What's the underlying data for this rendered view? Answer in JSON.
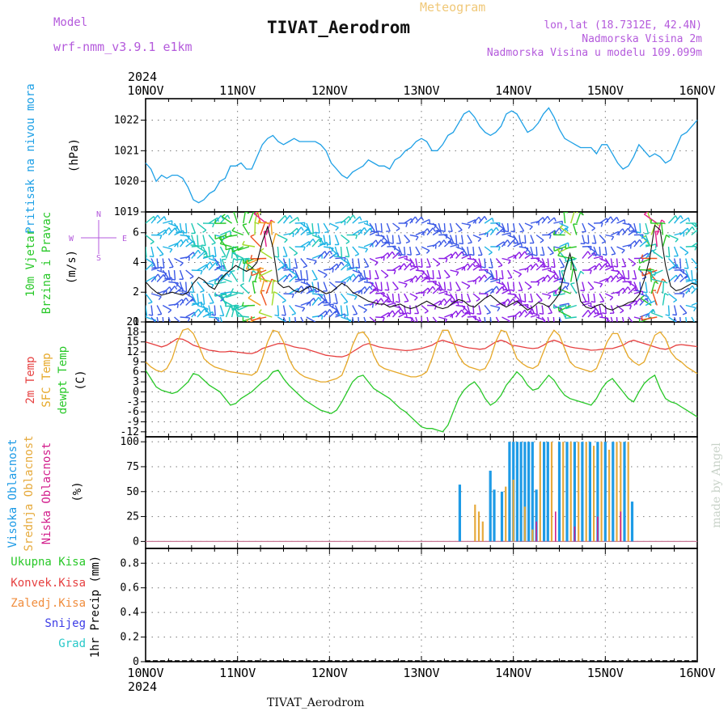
{
  "header": {
    "model_label": "Model",
    "model_name": "wrf-nmm_v3.9.1  e1km",
    "meteogram_label": "Meteogram",
    "station_title": "TIVAT_Aerodrom",
    "lonlat": "lon,lat (18.7312E, 42.4N)",
    "height_2m": "Nadmorska Visina 2m",
    "model_height": "Nadmorska Visina u modelu 109.099m",
    "footer_station": "TIVAT_Aerodrom",
    "watermark": "made by Angel"
  },
  "colors": {
    "pressure": "#1ea0e6",
    "t2m": "#e64040",
    "tsfc": "#e6a828",
    "dewpoint": "#28c828",
    "cloud_high": "#1e9be6",
    "cloud_mid": "#e6aa3c",
    "cloud_low": "#d21e8c",
    "title_purple": "#b45adc",
    "meteogram_orange": "#f0c878",
    "precip_total": "#28c828",
    "precip_conv": "#e64040",
    "precip_frozen": "#f08c3c",
    "precip_snow": "#3c3ce6",
    "precip_graupel": "#28c8c8"
  },
  "chart_data": [
    {
      "type": "line",
      "title": "",
      "ylabel": "(hPa)",
      "ylabel_side": "Pritisak na nivou mora",
      "x_ticks": [
        "10NOV",
        "11NOV",
        "12NOV",
        "13NOV",
        "14NOV",
        "15NOV",
        "16NOV"
      ],
      "x_year": "2024",
      "y_ticks": [
        1019,
        1020,
        1021,
        1022
      ],
      "ylim": [
        1019,
        1022.7
      ],
      "grid": true,
      "series": [
        {
          "key": "mslp",
          "values": [
            1020.6,
            1020.4,
            1020.0,
            1020.2,
            1020.1,
            1020.2,
            1020.2,
            1020.1,
            1019.8,
            1019.4,
            1019.3,
            1019.4,
            1019.6,
            1019.7,
            1020.0,
            1020.1,
            1020.5,
            1020.5,
            1020.6,
            1020.4,
            1020.4,
            1020.8,
            1021.2,
            1021.4,
            1021.5,
            1021.3,
            1021.2,
            1021.3,
            1021.4,
            1021.3,
            1021.3,
            1021.3,
            1021.3,
            1021.2,
            1021.0,
            1020.6,
            1020.4,
            1020.2,
            1020.1,
            1020.3,
            1020.4,
            1020.5,
            1020.7,
            1020.6,
            1020.5,
            1020.5,
            1020.4,
            1020.7,
            1020.8,
            1021.0,
            1021.1,
            1021.3,
            1021.4,
            1021.3,
            1021.0,
            1021.0,
            1021.2,
            1021.5,
            1021.6,
            1021.9,
            1022.2,
            1022.3,
            1022.1,
            1021.8,
            1021.6,
            1021.5,
            1021.6,
            1021.8,
            1022.2,
            1022.3,
            1022.2,
            1021.9,
            1021.6,
            1021.7,
            1021.9,
            1022.2,
            1022.4,
            1022.1,
            1021.7,
            1021.4,
            1021.3,
            1021.2,
            1021.1,
            1021.1,
            1021.1,
            1020.9,
            1021.2,
            1021.2,
            1020.9,
            1020.6,
            1020.4,
            1020.5,
            1020.8,
            1021.2,
            1021.0,
            1020.8,
            1020.9,
            1020.8,
            1020.6,
            1020.7,
            1021.1,
            1021.5,
            1021.6,
            1021.8,
            1022.0
          ]
        }
      ]
    },
    {
      "type": "line",
      "title": "",
      "ylabel": "(m/s)",
      "ylabel_side": [
        "10m Vjetar",
        "Brzina i Pravac"
      ],
      "wind_key": {
        "n": "N",
        "w": "W",
        "e": "E",
        "s": "S"
      },
      "y_ticks": [
        0,
        2,
        4,
        6
      ],
      "ylim": [
        0,
        7.4
      ],
      "grid": true,
      "series": [
        {
          "key": "wind_speed",
          "values": [
            2.7,
            2.3,
            2.0,
            1.8,
            1.9,
            2.0,
            1.9,
            1.8,
            2.0,
            2.6,
            3.0,
            2.8,
            2.4,
            2.2,
            2.8,
            3.2,
            3.5,
            3.8,
            3.6,
            3.4,
            3.6,
            4.0,
            5.4,
            6.4,
            5.0,
            2.6,
            2.3,
            2.4,
            2.1,
            2.0,
            2.2,
            2.4,
            2.3,
            2.1,
            1.9,
            2.0,
            2.3,
            2.6,
            2.4,
            2.0,
            1.8,
            1.6,
            1.4,
            1.3,
            1.2,
            1.2,
            1.0,
            1.1,
            1.2,
            1.0,
            0.9,
            1.0,
            1.2,
            1.4,
            1.2,
            1.0,
            0.9,
            1.0,
            1.3,
            1.5,
            1.4,
            1.1,
            1.0,
            1.3,
            1.6,
            1.8,
            1.5,
            1.2,
            1.0,
            1.2,
            1.4,
            1.1,
            0.8,
            1.0,
            1.3,
            1.2,
            1.0,
            1.4,
            1.9,
            3.4,
            4.6,
            3.2,
            1.4,
            1.0,
            0.9,
            1.1,
            1.2,
            0.9,
            0.8,
            1.0,
            1.1,
            1.3,
            1.4,
            1.8,
            2.8,
            4.2,
            6.5,
            6.2,
            3.8,
            2.4,
            2.1,
            2.2,
            2.4,
            2.6,
            2.5
          ]
        }
      ]
    },
    {
      "type": "line",
      "title": "",
      "ylabel": "(C)",
      "ylabel_side": [
        "2m Temp",
        "SFC Temp",
        "dewpt Temp"
      ],
      "y_ticks": [
        -12,
        -9,
        -6,
        -3,
        0,
        3,
        6,
        9,
        12,
        15,
        18,
        21
      ],
      "ylim": [
        -13.5,
        21
      ],
      "grid": true,
      "series": [
        {
          "key": "t2m",
          "values": [
            15.0,
            14.5,
            14.0,
            13.5,
            14.0,
            15.0,
            16.0,
            15.8,
            15.0,
            14.0,
            13.5,
            13.0,
            12.5,
            12.3,
            12.0,
            12.0,
            12.2,
            12.0,
            11.8,
            11.6,
            11.5,
            12.0,
            13.0,
            13.5,
            14.0,
            14.5,
            14.5,
            14.0,
            13.5,
            13.2,
            13.0,
            12.5,
            12.0,
            11.5,
            11.0,
            10.8,
            10.6,
            10.5,
            11.0,
            12.0,
            13.0,
            14.0,
            14.5,
            14.0,
            13.5,
            13.2,
            13.0,
            12.8,
            12.6,
            12.4,
            12.5,
            12.8,
            13.0,
            13.5,
            14.0,
            15.0,
            15.5,
            15.0,
            14.5,
            14.0,
            13.5,
            13.2,
            13.0,
            12.8,
            13.0,
            14.0,
            15.0,
            15.5,
            15.0,
            14.0,
            13.8,
            13.5,
            13.2,
            13.0,
            13.2,
            14.0,
            15.0,
            15.5,
            15.0,
            14.0,
            13.5,
            13.2,
            13.0,
            12.8,
            12.5,
            12.6,
            12.8,
            13.0,
            13.0,
            13.5,
            14.0,
            15.0,
            15.5,
            15.0,
            14.5,
            14.0,
            13.5,
            13.0,
            12.8,
            13.2,
            14.0,
            14.2,
            14.0,
            13.8,
            13.6
          ]
        },
        {
          "key": "tsfc",
          "values": [
            9.0,
            7.5,
            6.5,
            6.0,
            7.0,
            10.0,
            15.0,
            18.5,
            19.0,
            17.5,
            14.0,
            10.0,
            8.5,
            7.5,
            7.0,
            6.5,
            6.0,
            5.8,
            5.5,
            5.3,
            5.0,
            6.0,
            10.0,
            15.0,
            18.5,
            18.0,
            15.0,
            10.0,
            7.0,
            5.5,
            4.5,
            4.0,
            3.5,
            3.0,
            3.0,
            3.5,
            4.0,
            5.0,
            9.0,
            14.0,
            17.5,
            18.0,
            16.0,
            11.0,
            8.0,
            7.0,
            6.5,
            6.0,
            5.5,
            5.0,
            4.5,
            4.5,
            5.0,
            6.0,
            10.0,
            15.0,
            18.5,
            18.5,
            15.0,
            11.0,
            8.5,
            7.5,
            7.0,
            6.5,
            7.0,
            10.0,
            15.0,
            18.5,
            18.0,
            14.0,
            10.0,
            8.5,
            7.5,
            7.0,
            8.0,
            12.0,
            16.0,
            18.5,
            17.0,
            13.0,
            9.0,
            7.5,
            7.0,
            6.5,
            6.0,
            7.0,
            11.0,
            15.0,
            17.5,
            17.5,
            14.0,
            10.5,
            9.0,
            8.0,
            9.0,
            13.0,
            17.0,
            18.0,
            16.0,
            12.0,
            10.0,
            9.0,
            7.5,
            6.5,
            5.5
          ]
        },
        {
          "key": "dewpoint",
          "values": [
            6.5,
            4.0,
            1.5,
            0.5,
            0.0,
            -0.5,
            0.0,
            1.5,
            3.0,
            5.5,
            5.0,
            3.5,
            2.0,
            1.0,
            0.0,
            -2.0,
            -4.0,
            -3.5,
            -2.0,
            -1.0,
            0.0,
            1.5,
            3.0,
            4.0,
            6.0,
            6.5,
            4.0,
            2.0,
            0.5,
            -1.0,
            -2.5,
            -3.5,
            -4.5,
            -5.5,
            -6.0,
            -6.5,
            -5.5,
            -3.0,
            0.0,
            3.0,
            4.5,
            5.0,
            3.0,
            1.0,
            0.0,
            -1.0,
            -2.0,
            -3.5,
            -5.0,
            -6.0,
            -7.5,
            -9.0,
            -10.5,
            -11.0,
            -11.0,
            -11.5,
            -12.0,
            -10.0,
            -6.0,
            -2.0,
            0.5,
            2.0,
            3.0,
            1.0,
            -2.0,
            -4.0,
            -3.0,
            -1.0,
            2.0,
            4.0,
            6.0,
            4.5,
            2.0,
            0.5,
            1.0,
            3.0,
            5.0,
            3.5,
            1.0,
            -1.0,
            -2.0,
            -2.5,
            -3.0,
            -3.5,
            -4.0,
            -2.0,
            1.0,
            3.0,
            4.0,
            2.0,
            0.0,
            -2.0,
            -3.0,
            0.0,
            2.5,
            4.0,
            5.0,
            1.0,
            -2.0,
            -3.0,
            -3.5,
            -4.5,
            -5.5,
            -6.5,
            -7.5
          ]
        }
      ]
    },
    {
      "type": "bar",
      "title": "",
      "ylabel": "(%)",
      "ylabel_side": [
        "Visoka Oblacnost",
        "Srednja Oblacnost",
        "Niska Oblacnost"
      ],
      "y_ticks": [
        0,
        25,
        50,
        75,
        100
      ],
      "ylim": [
        -7,
        105
      ],
      "grid": true,
      "series": [
        {
          "key": "high",
          "hour": [
            82,
            90,
            91,
            93,
            95,
            96,
            97,
            98,
            99,
            100,
            101,
            102,
            104,
            105,
            108,
            110,
            112,
            114,
            116,
            118,
            120,
            122,
            125,
            127
          ],
          "values": [
            57,
            71,
            52,
            50,
            100,
            100,
            100,
            100,
            100,
            100,
            100,
            52,
            100,
            100,
            100,
            100,
            100,
            100,
            100,
            100,
            100,
            100,
            100,
            40
          ]
        },
        {
          "key": "mid",
          "hour": [
            86,
            87,
            88,
            94,
            96,
            99,
            101,
            103,
            106,
            109,
            111,
            113,
            115,
            117,
            119,
            121,
            123,
            124,
            126
          ],
          "values": [
            37,
            30,
            20,
            55,
            62,
            35,
            12,
            100,
            100,
            100,
            100,
            100,
            100,
            96,
            100,
            92,
            100,
            100,
            100
          ]
        },
        {
          "key": "low",
          "hour": [
            102,
            107,
            112,
            118,
            124
          ],
          "values": [
            20,
            30,
            15,
            25,
            30
          ]
        }
      ]
    },
    {
      "type": "line",
      "title": "",
      "ylabel": "1hr Precip (mm)",
      "legend": [
        "Ukupna Kisa",
        "Konvek.Kisa",
        "Zaledj.Kisa",
        "Snijeg",
        "Grad"
      ],
      "y_ticks": [
        0,
        0.2,
        0.4,
        0.6,
        0.8
      ],
      "ylim": [
        0,
        0.92
      ],
      "grid": true,
      "x_ticks": [
        "10NOV",
        "11NOV",
        "12NOV",
        "13NOV",
        "14NOV",
        "15NOV",
        "16NOV"
      ],
      "x_year": "2024",
      "series": [
        {
          "key": "total",
          "values": []
        }
      ]
    }
  ]
}
